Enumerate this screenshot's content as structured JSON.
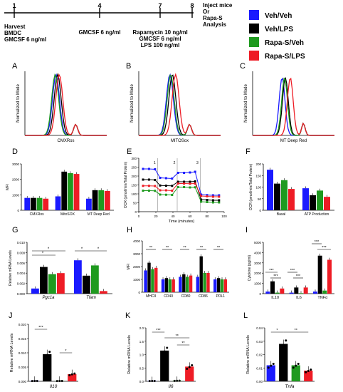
{
  "colors": {
    "veh_veh": "#1a1aff",
    "veh_lps": "#000000",
    "rapa_veh": "#1f9a1f",
    "rapa_lps": "#ee1c25"
  },
  "legend": {
    "items": [
      {
        "label": "Veh/Veh",
        "color": "#1a1aff"
      },
      {
        "label": "Veh/LPS",
        "color": "#000000"
      },
      {
        "label": "Rapa-S/Veh",
        "color": "#1f9a1f"
      },
      {
        "label": "Rapa-S/LPS",
        "color": "#ee1c25"
      }
    ]
  },
  "timeline": {
    "days": [
      "1",
      "4",
      "7",
      "8"
    ],
    "labels": [
      {
        "lines": [
          "Harvest",
          "BMDC",
          "GMCSF 6 ng/ml"
        ]
      },
      {
        "lines": [
          "GMCSF 6 ng/ml"
        ]
      },
      {
        "lines": [
          "Rapamycin 10 ng/ml",
          "GMCSF 6 ng/ml",
          "LPS 100 ng/ml"
        ]
      },
      {
        "lines": [
          "Inject mice",
          "Or",
          "Rapa-S",
          "Analysis"
        ]
      }
    ]
  },
  "chart_data": [
    {
      "panel": "A",
      "type": "line",
      "xlabel": "CMXRos",
      "ylabel": "Normalized to Mode"
    },
    {
      "panel": "B",
      "type": "line",
      "xlabel": "MITOSox",
      "ylabel": "Normalized to Mode"
    },
    {
      "panel": "C",
      "type": "line",
      "xlabel": "MT Deep Red",
      "ylabel": "Normalized to Mode"
    },
    {
      "panel": "D",
      "type": "bar",
      "ylabel": "MFI",
      "categories": [
        "CMXRos",
        "MitoSOX",
        "MT Deep Red"
      ],
      "yticks": [
        "0",
        "1000",
        "2000",
        "3000"
      ],
      "ylim": [
        0,
        3000
      ],
      "series": [
        {
          "values": [
            800,
            900,
            750
          ]
        },
        {
          "values": [
            800,
            2500,
            1300
          ]
        },
        {
          "values": [
            800,
            2400,
            1300
          ]
        },
        {
          "values": [
            750,
            2350,
            1250
          ]
        }
      ]
    },
    {
      "panel": "E",
      "type": "line",
      "xlabel": "Time (minutes)",
      "ylabel": "OCR (pmol/min/Total Protein)",
      "xticks": [
        "0",
        "20",
        "40",
        "60",
        "80",
        "100"
      ],
      "yticks": [
        "0",
        "50",
        "100",
        "150",
        "200",
        "250",
        "300"
      ],
      "xlim": [
        0,
        100
      ],
      "ylim": [
        0,
        300
      ],
      "markers": [
        "1",
        "2",
        "3"
      ],
      "x": [
        5,
        12,
        19,
        25,
        32,
        39,
        46,
        53,
        60,
        66,
        73,
        80,
        87,
        94
      ],
      "series": [
        {
          "values": [
            240,
            240,
            238,
            190,
            188,
            186,
            218,
            218,
            220,
            224,
            96,
            93,
            92,
            92
          ]
        },
        {
          "values": [
            180,
            180,
            178,
            147,
            146,
            145,
            168,
            168,
            168,
            170,
            68,
            66,
            64,
            64
          ]
        },
        {
          "values": [
            118,
            118,
            117,
            96,
            95,
            94,
            138,
            138,
            136,
            137,
            56,
            54,
            52,
            52
          ]
        },
        {
          "values": [
            145,
            145,
            144,
            120,
            120,
            118,
            158,
            158,
            157,
            158,
            88,
            86,
            84,
            84
          ]
        }
      ]
    },
    {
      "panel": "F",
      "type": "bar",
      "ylabel": "OCR (pmol/min/Total Protein)",
      "categories": [
        "Basal",
        "ATP Production"
      ],
      "yticks": [
        "0",
        "50",
        "100",
        "150",
        "200"
      ],
      "ylim": [
        0,
        200
      ],
      "series": [
        {
          "values": [
            175,
            95
          ]
        },
        {
          "values": [
            115,
            65
          ]
        },
        {
          "values": [
            130,
            85
          ]
        },
        {
          "values": [
            92,
            58
          ]
        }
      ]
    },
    {
      "panel": "G",
      "type": "bar",
      "ylabel": "Relative mRNA Levels",
      "categories": [
        "Pgc1a",
        "Tfam"
      ],
      "yticks": [
        "0.000",
        "0.002",
        "0.004",
        "0.006",
        "0.008",
        "0.010"
      ],
      "ylim": [
        0,
        0.01
      ],
      "series": [
        {
          "values": [
            0.001,
            0.0065
          ]
        },
        {
          "values": [
            0.0052,
            0.0035
          ]
        },
        {
          "values": [
            0.0038,
            0.0055
          ]
        },
        {
          "values": [
            0.004,
            0.0005
          ]
        }
      ]
    },
    {
      "panel": "H",
      "type": "bar",
      "ylabel": "MFI",
      "categories": [
        "MHCII",
        "CD40",
        "CD80",
        "CD86",
        "PDL1"
      ],
      "yticks": [
        "0",
        "1000",
        "2000",
        "3000",
        "4000"
      ],
      "ylim": [
        0,
        4000
      ],
      "series": [
        {
          "values": [
            1700,
            1000,
            1200,
            1200,
            1000
          ]
        },
        {
          "values": [
            2300,
            1100,
            1400,
            2800,
            1100
          ]
        },
        {
          "values": [
            1800,
            1000,
            1200,
            1500,
            1000
          ]
        },
        {
          "values": [
            1900,
            1000,
            1300,
            1500,
            1000
          ]
        }
      ]
    },
    {
      "panel": "I",
      "type": "bar",
      "ylabel": "Cytokine (pg/ml)",
      "categories": [
        "IL10",
        "IL6",
        "TNFα"
      ],
      "yticks": [
        "0",
        "1000",
        "2000",
        "3000",
        "4000",
        "5000"
      ],
      "ylim": [
        0,
        5000
      ],
      "series": [
        {
          "values": [
            200,
            100,
            200
          ]
        },
        {
          "values": [
            1200,
            600,
            3700
          ]
        },
        {
          "values": [
            100,
            50,
            300
          ]
        },
        {
          "values": [
            500,
            600,
            3300
          ]
        }
      ]
    },
    {
      "panel": "J",
      "type": "bar",
      "gene": "Il10",
      "ylabel": "Relative mRNA Levels",
      "yticks": [
        "0.000",
        "0.005",
        "0.010",
        "0.015",
        "0.020"
      ],
      "ylim": [
        0,
        0.02
      ],
      "values": [
        0.0001,
        0.0095,
        0.0001,
        0.0025
      ]
    },
    {
      "panel": "K",
      "type": "bar",
      "gene": "Il6",
      "ylabel": "Relative mRNA Levels",
      "yticks": [
        "0.0",
        "0.5",
        "1.0",
        "1.5",
        "2.0"
      ],
      "ylim": [
        0,
        2
      ],
      "values": [
        0.01,
        1.15,
        0.02,
        0.55
      ]
    },
    {
      "panel": "L",
      "type": "bar",
      "gene": "Tnfa",
      "ylabel": "Relative mRNA Levels",
      "yticks": [
        "0.00",
        "0.01",
        "0.02",
        "0.03",
        "0.04"
      ],
      "ylim": [
        0,
        0.04
      ],
      "values": [
        0.012,
        0.028,
        0.012,
        0.008
      ]
    }
  ],
  "sig": {
    "star1": "*",
    "star2": "**",
    "star3": "***"
  }
}
